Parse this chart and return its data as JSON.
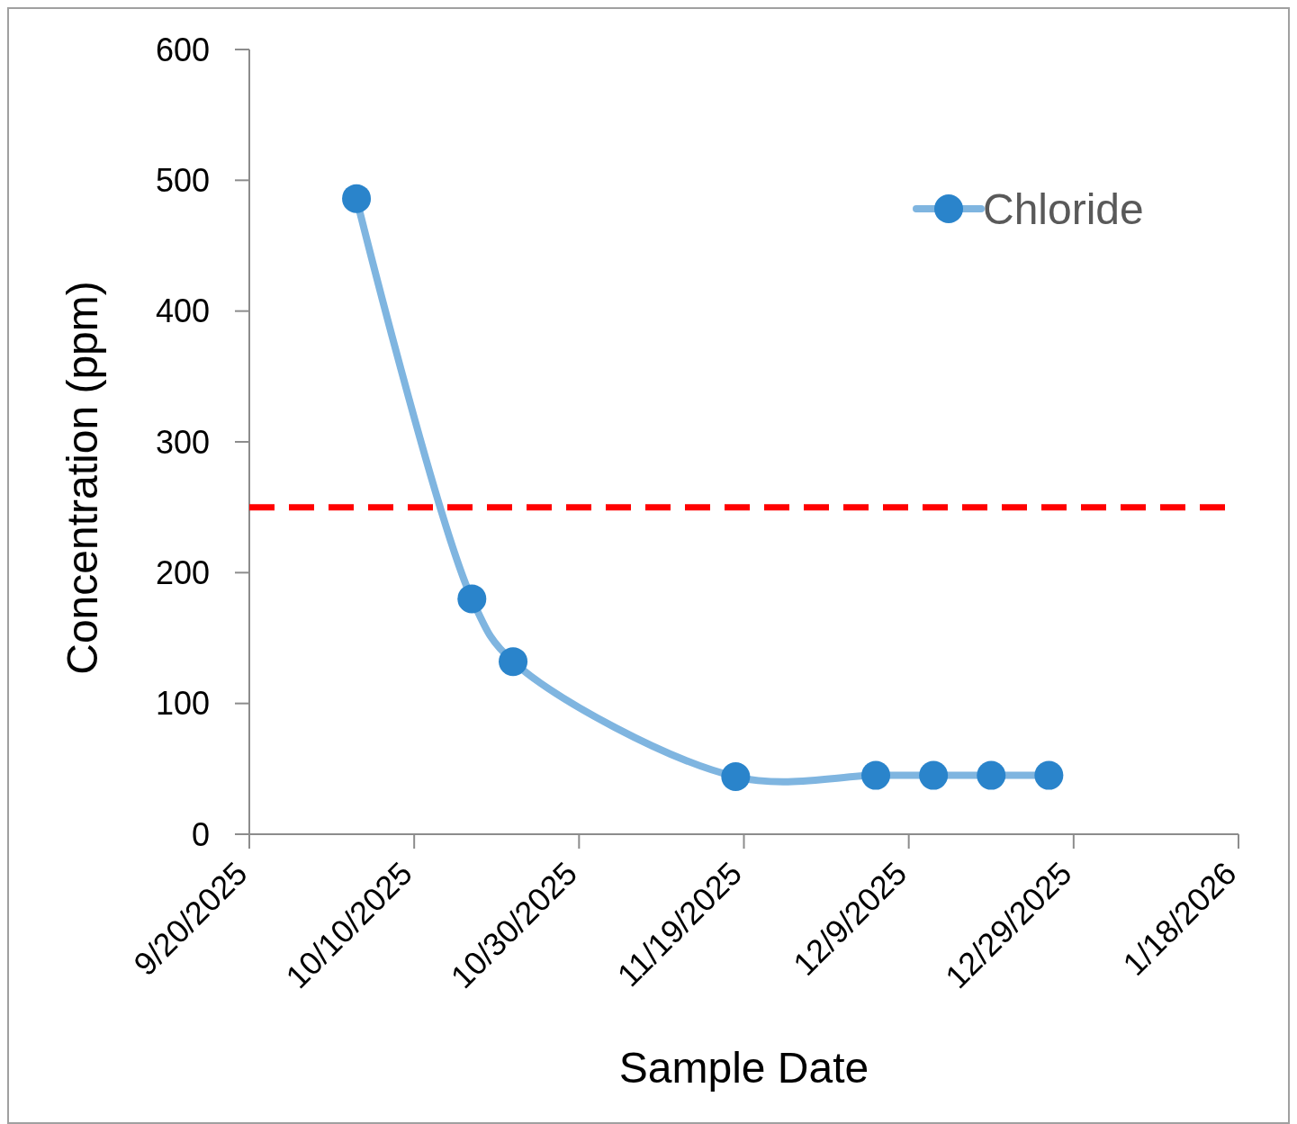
{
  "chart_data": {
    "type": "line",
    "xlabel": "Sample Date",
    "ylabel": "Concentration (ppm)",
    "x": [
      "2025-10-03",
      "2025-10-17",
      "2025-10-22",
      "2025-11-18",
      "2025-12-05",
      "2025-12-12",
      "2025-12-19",
      "2025-12-26"
    ],
    "series": [
      {
        "name": "Chloride",
        "color": "#2a84cb",
        "values": [
          486,
          180,
          132,
          44,
          45,
          45,
          45,
          45
        ]
      }
    ],
    "xlim": [
      "2025-09-20",
      "2026-01-18"
    ],
    "xticks": [
      {
        "value": "2025-09-20",
        "label": "9/20/2025"
      },
      {
        "value": "2025-10-10",
        "label": "10/10/2025"
      },
      {
        "value": "2025-10-30",
        "label": "10/30/2025"
      },
      {
        "value": "2025-11-19",
        "label": "11/19/2025"
      },
      {
        "value": "2025-12-09",
        "label": "12/9/2025"
      },
      {
        "value": "2025-12-29",
        "label": "12/29/2025"
      },
      {
        "value": "2026-01-18",
        "label": "1/18/2026"
      }
    ],
    "ylim": [
      0,
      600
    ],
    "yticks": [
      0,
      100,
      200,
      300,
      400,
      500,
      600
    ],
    "ref_lines": [
      {
        "axis": "y",
        "value": 250,
        "color": "#ff0000",
        "line_style": "dashed"
      }
    ],
    "grid": false,
    "legend": "top right",
    "marker": "circle",
    "line_style": "solid"
  }
}
